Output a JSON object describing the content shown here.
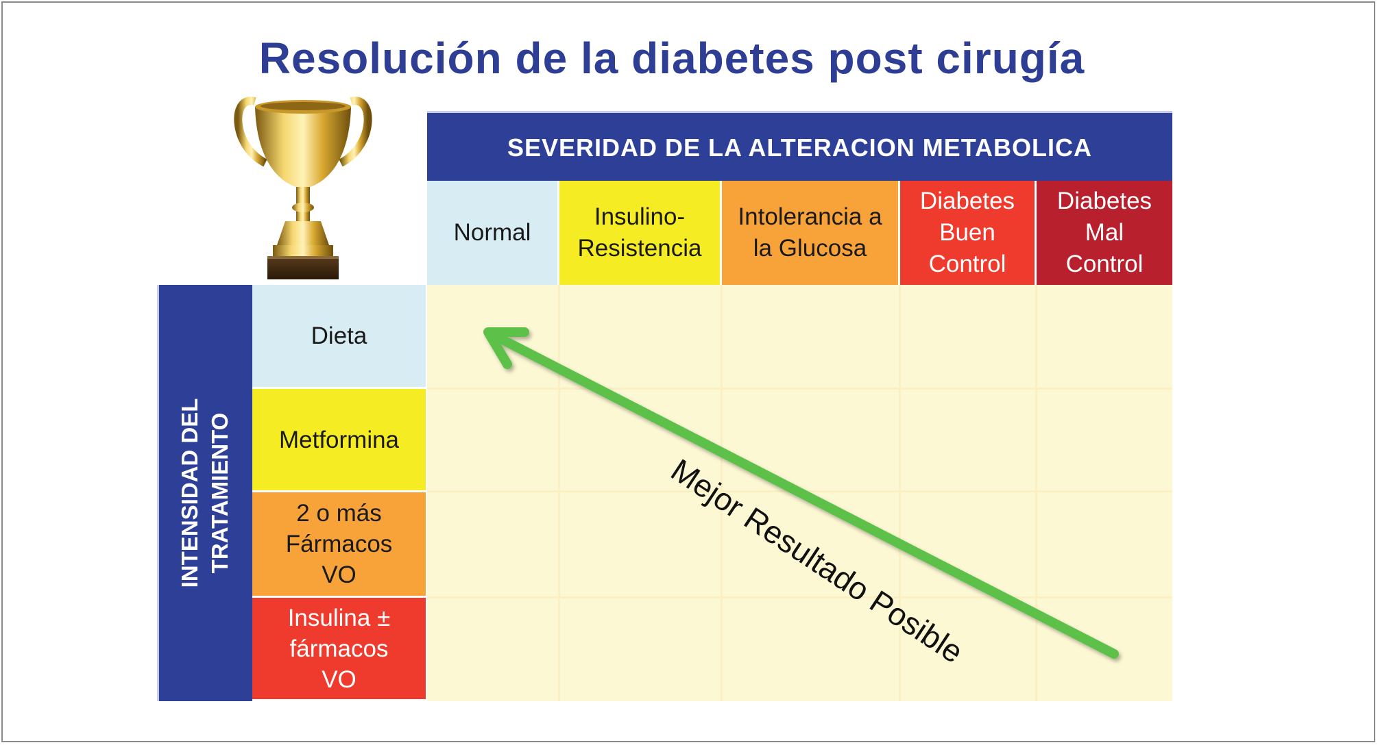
{
  "title": "Resolución de la diabetes post cirugía",
  "severity_header": "SEVERIDAD DE LA ALTERACION METABOLICA",
  "columns": [
    {
      "label": "Normal",
      "color": "#d8ecf4",
      "text_color": "#1a1a1a"
    },
    {
      "label": "Insulino-\nResistencia",
      "color": "#f5ec24",
      "text_color": "#1a1a1a"
    },
    {
      "label": "Intolerancia a\nla Glucosa",
      "color": "#f8a23a",
      "text_color": "#1a1a1a"
    },
    {
      "label": "Diabetes\nBuen\nControl",
      "color": "#ef3b2d",
      "text_color": "#ffffff"
    },
    {
      "label": "Diabetes\nMal\nControl",
      "color": "#b8202e",
      "text_color": "#ffffff"
    }
  ],
  "intensity_header": "INTENSIDAD DEL\nTRATAMIENTO",
  "rows": [
    {
      "label": "Dieta",
      "color": "#d8ecf4",
      "text_color": "#1a1a1a"
    },
    {
      "label": "Metformina",
      "color": "#f5ec24",
      "text_color": "#1a1a1a"
    },
    {
      "label": "2 o más\nFármacos\nVO",
      "color": "#f8a23a",
      "text_color": "#1a1a1a"
    },
    {
      "label": "Insulina ±\nfármacos\nVO",
      "color": "#ef3b2d",
      "text_color": "#ffffff"
    }
  ],
  "arrow_label": "Mejor Resultado Posible",
  "colors": {
    "header_blue": "#2e3f98",
    "title_blue": "#2f3e95",
    "grid_fill": "#fdf8d4",
    "arrow_green": "#5cc04a"
  },
  "icons": [
    "trophy-icon"
  ]
}
